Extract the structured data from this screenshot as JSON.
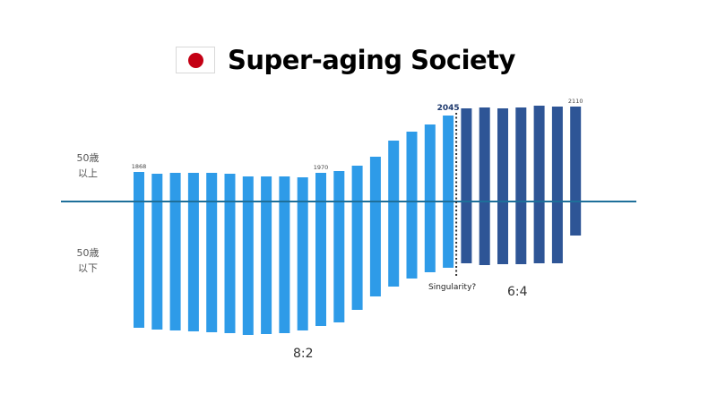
{
  "title": "Super-aging Society",
  "flag_icon": "japan-flag-icon",
  "labels": {
    "above": [
      "50歳",
      "以上"
    ],
    "below": [
      "50歳",
      "以下"
    ]
  },
  "annotations": {
    "ratio_left": "8:2",
    "ratio_right": "6:4",
    "singularity": "Singularity?"
  },
  "colors": {
    "light_bar": "#2e9be8",
    "dark_bar": "#2e5596",
    "baseline": "#1e6f9a"
  },
  "chart_data": {
    "type": "bar",
    "title": "Super-aging Society",
    "categories": [
      "1868",
      "",
      "",
      "",
      "",
      "",
      "",
      "",
      "",
      "",
      "1970",
      "",
      "",
      "",
      "",
      "",
      "",
      "2045",
      "",
      "",
      "",
      "",
      "",
      "",
      "2110"
    ],
    "series": [
      {
        "values": [
          33,
          31,
          32,
          32,
          32,
          31,
          28,
          28,
          28,
          27,
          32,
          34,
          40,
          50,
          68,
          78,
          86,
          96,
          104,
          105,
          104,
          105,
          107,
          106,
          106
        ],
        "segment": "above"
      },
      {
        "values": [
          -141,
          -143,
          -144,
          -145,
          -146,
          -147,
          -149,
          -148,
          -147,
          -144,
          -139,
          -135,
          -121,
          -106,
          -95,
          -86,
          -79,
          -74,
          -69,
          -71,
          -70,
          -70,
          -69,
          -69,
          -38
        ],
        "segment": "below"
      }
    ],
    "dark_from_index": 18,
    "marker_label": "2045",
    "marker_index": 17,
    "ylim": [
      -150,
      110
    ]
  }
}
